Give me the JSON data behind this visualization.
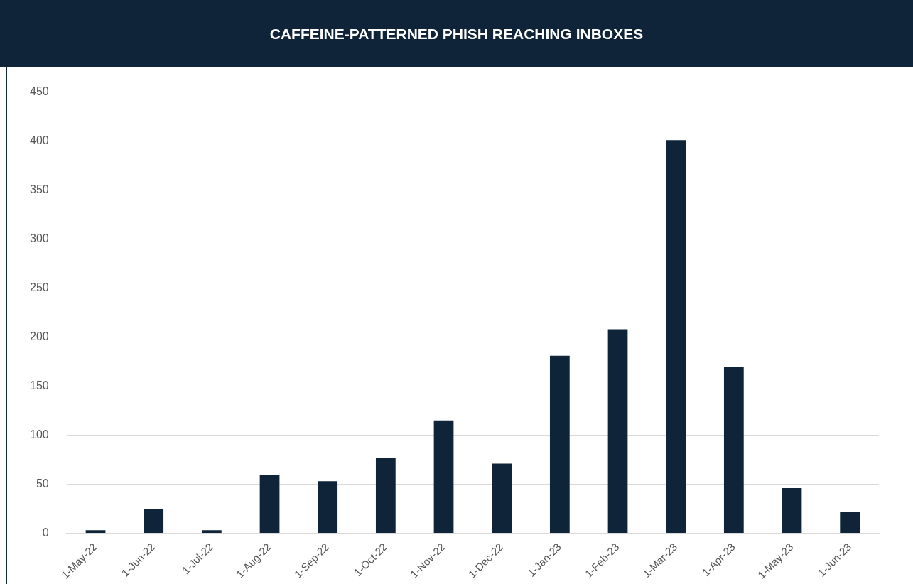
{
  "chart_data": {
    "type": "bar",
    "title": "CAFFEINE-PATTERNED PHISH REACHING INBOXES",
    "categories": [
      "1-May-22",
      "1-Jun-22",
      "1-Jul-22",
      "1-Aug-22",
      "1-Sep-22",
      "1-Oct-22",
      "1-Nov-22",
      "1-Dec-22",
      "1-Jan-23",
      "1-Feb-23",
      "1-Mar-23",
      "1-Apr-23",
      "1-May-23",
      "1-Jun-23"
    ],
    "values": [
      3,
      25,
      3,
      59,
      53,
      77,
      115,
      71,
      181,
      208,
      401,
      170,
      46,
      22
    ],
    "color": "#0f2438",
    "ylim": [
      0,
      450
    ],
    "yticks": [
      0,
      50,
      100,
      150,
      200,
      250,
      300,
      350,
      400,
      450
    ],
    "grid": "y"
  }
}
